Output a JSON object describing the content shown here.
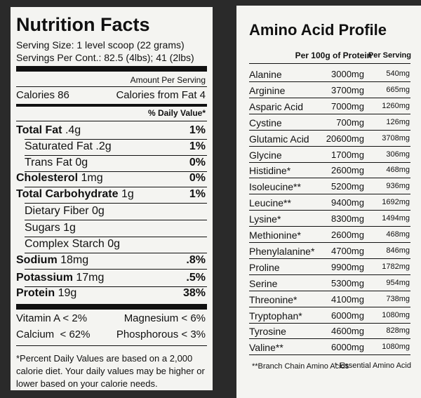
{
  "nutrition": {
    "title": "Nutrition Facts",
    "serving_size": "Serving Size: 1 level scoop (22 grams)",
    "servings": "Servings Per Cont.: 82.5 (4lbs); 41 (2lbs)",
    "amount_per_serving": "Amount Per Serving",
    "calories": "Calories 86",
    "calories_from_fat": "Calories from Fat 4",
    "daily_value_header": "% Daily Value*",
    "rows": [
      {
        "label": "Total Fat",
        "amount": ".4g",
        "dv": "1%"
      },
      {
        "label": "Saturated Fat",
        "amount": ".2g",
        "dv": "1%"
      },
      {
        "label": "Trans Fat",
        "amount": "0g",
        "dv": "0%"
      },
      {
        "label": "Cholesterol",
        "amount": "1mg",
        "dv": "0%"
      },
      {
        "label": "Total Carbohydrate",
        "amount": "1g",
        "dv": "1%"
      },
      {
        "label": "Dietary Fiber",
        "amount": "0g"
      },
      {
        "label": "Sugars",
        "amount": "1g"
      },
      {
        "label": "Complex Starch",
        "amount": "0g"
      },
      {
        "label": "Sodium",
        "amount": "18mg",
        "dv": ".8%"
      },
      {
        "label": "Potassium",
        "amount": "17mg",
        "dv": ".5%"
      },
      {
        "label": "Protein",
        "amount": "19g",
        "dv": "38%"
      }
    ],
    "minerals": [
      [
        "Vitamin A < 2%",
        "Magnesium < 6%"
      ],
      [
        "Calcium  < 62%",
        "Phosphorous < 3%"
      ]
    ],
    "footnote": [
      "*Percent Daily Values are based on a 2,000",
      "calorie diet. Your daily values may be higher or",
      "lower based on your calorie needs."
    ]
  },
  "amino": {
    "title": "Amino Acid Profile",
    "header_protein": "Per 100g of Protein",
    "header_serving": "Per Serving",
    "rows": [
      [
        "Alanine",
        "3000mg",
        "540mg"
      ],
      [
        "Arginine",
        "3700mg",
        "665mg"
      ],
      [
        "Asparic Acid",
        "7000mg",
        "1260mg"
      ],
      [
        "Cystine",
        "700mg",
        "126mg"
      ],
      [
        "Glutamic Acid",
        "20600mg",
        "3708mg"
      ],
      [
        "Glycine",
        "1700mg",
        "306mg"
      ],
      [
        "Histidine*",
        "2600mg",
        "468mg"
      ],
      [
        "Isoleucine**",
        "5200mg",
        "936mg"
      ],
      [
        "Leucine**",
        "9400mg",
        "1692mg"
      ],
      [
        "Lysine*",
        "8300mg",
        "1494mg"
      ],
      [
        "Methionine*",
        "2600mg",
        "468mg"
      ],
      [
        "Phenylalanine*",
        "4700mg",
        "846mg"
      ],
      [
        "Proline",
        "9900mg",
        "1782mg"
      ],
      [
        "Serine",
        "5300mg",
        "954mg"
      ],
      [
        "Threonine*",
        "4100mg",
        "738mg"
      ],
      [
        "Tryptophan*",
        "6000mg",
        "1080mg"
      ],
      [
        "Tyrosine",
        "4600mg",
        "828mg"
      ],
      [
        "Valine**",
        "6000mg",
        "1080mg"
      ]
    ],
    "footnote_bcaa": "**Branch Chain Amino Acids",
    "footnote_essential": "* Essential Amino Acid"
  }
}
